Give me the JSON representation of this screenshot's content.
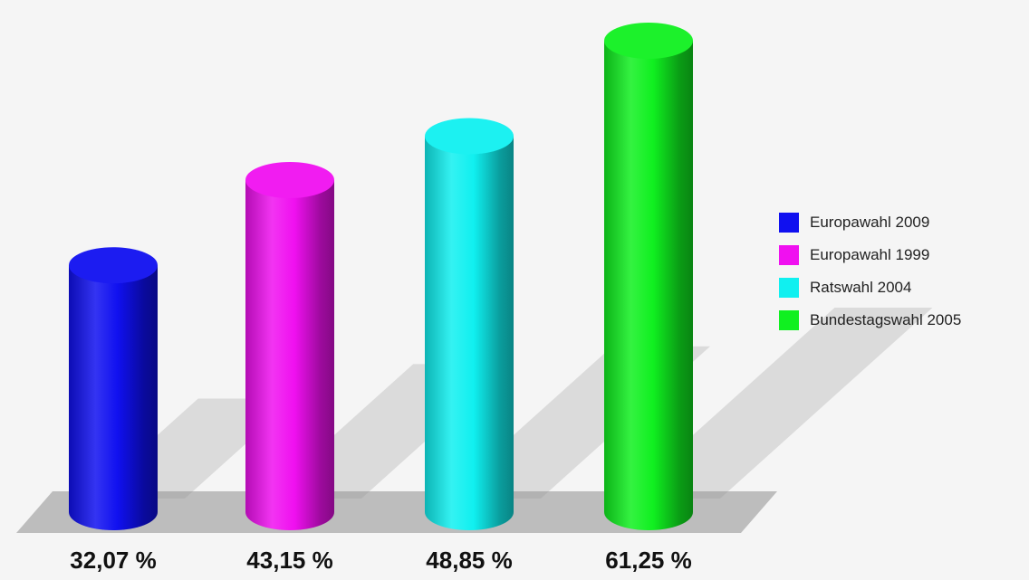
{
  "chart_data": {
    "type": "bar",
    "style": "3d-cylinder",
    "categories": [
      "Europawahl 2009",
      "Europawahl 1999",
      "Ratswahl 2004",
      "Bundestagswahl 2005"
    ],
    "values": [
      32.07,
      43.15,
      48.85,
      61.25
    ],
    "value_labels": [
      "32,07 %",
      "43,15 %",
      "48,85 %",
      "61,25 %"
    ],
    "colors": [
      "#1010f0",
      "#f010f0",
      "#10f0f0",
      "#10f020"
    ],
    "title": "",
    "xlabel": "",
    "ylabel": "",
    "ylim": [
      0,
      61.25
    ],
    "grid": false,
    "legend_position": "right"
  },
  "legend": {
    "items": [
      {
        "label": "Europawahl 2009",
        "color": "#1010f0"
      },
      {
        "label": "Europawahl 1999",
        "color": "#f010f0"
      },
      {
        "label": "Ratswahl 2004",
        "color": "#10f0f0"
      },
      {
        "label": "Bundestagswahl 2005",
        "color": "#10f020"
      }
    ]
  }
}
